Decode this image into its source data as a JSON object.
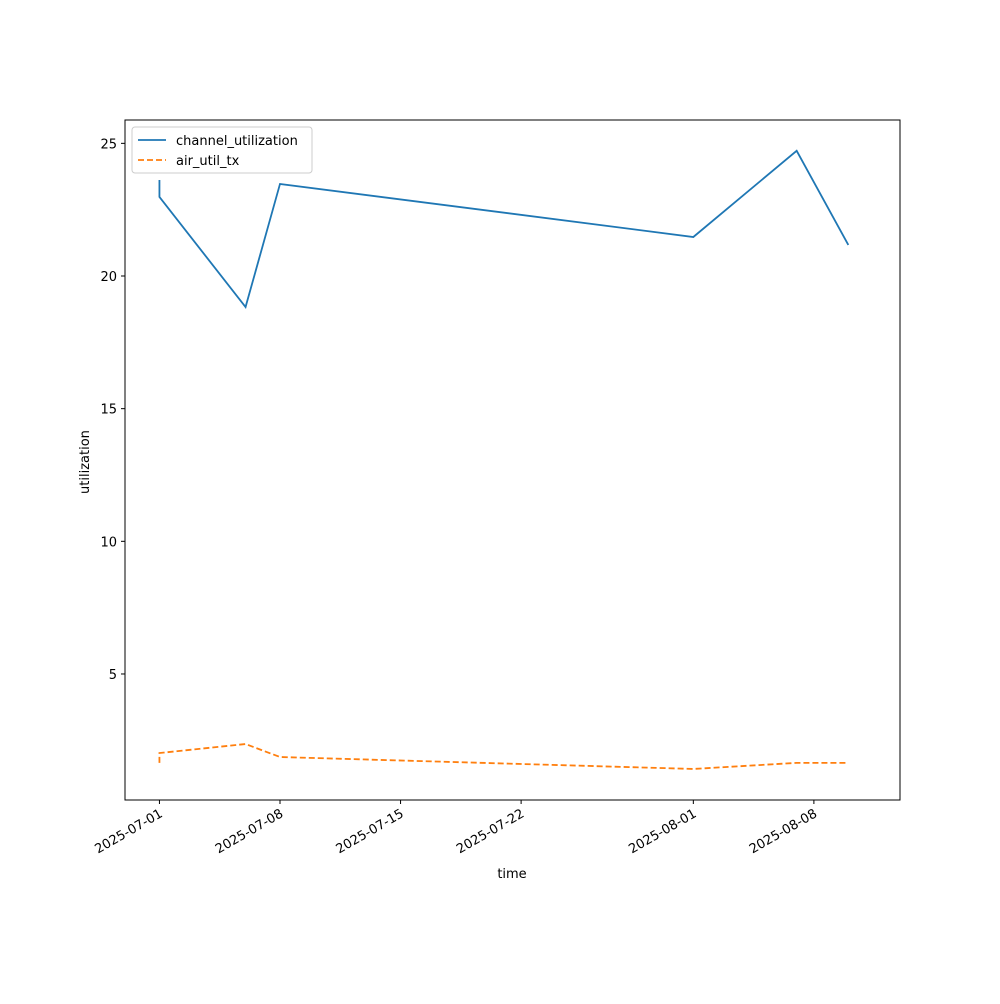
{
  "chart_data": {
    "type": "line",
    "x_label": "time",
    "y_label": "utilization",
    "x": [
      "2025-07-01",
      "2025-07-01",
      "2025-07-06",
      "2025-07-08",
      "2025-08-01",
      "2025-08-07",
      "2025-08-10"
    ],
    "series": [
      {
        "name": "channel_utilization",
        "color": "#1f77b4",
        "linestyle": "solid",
        "values": [
          23.62,
          22.98,
          18.83,
          23.47,
          21.47,
          24.72,
          21.17
        ]
      },
      {
        "name": "air_util_tx",
        "color": "#ff7f0e",
        "linestyle": "dashed",
        "values": [
          1.65,
          2.02,
          2.36,
          1.87,
          1.42,
          1.65,
          1.65
        ]
      }
    ],
    "xlim": [
      "2025-06-29",
      "2025-08-13"
    ],
    "xticks": [
      "2025-07-01",
      "2025-07-08",
      "2025-07-15",
      "2025-07-22",
      "2025-08-01",
      "2025-08-08"
    ],
    "ylim": [
      0.25,
      25.88
    ],
    "yticks": [
      5,
      10,
      15,
      20,
      25
    ],
    "legend": "upper left",
    "grid": false
  }
}
